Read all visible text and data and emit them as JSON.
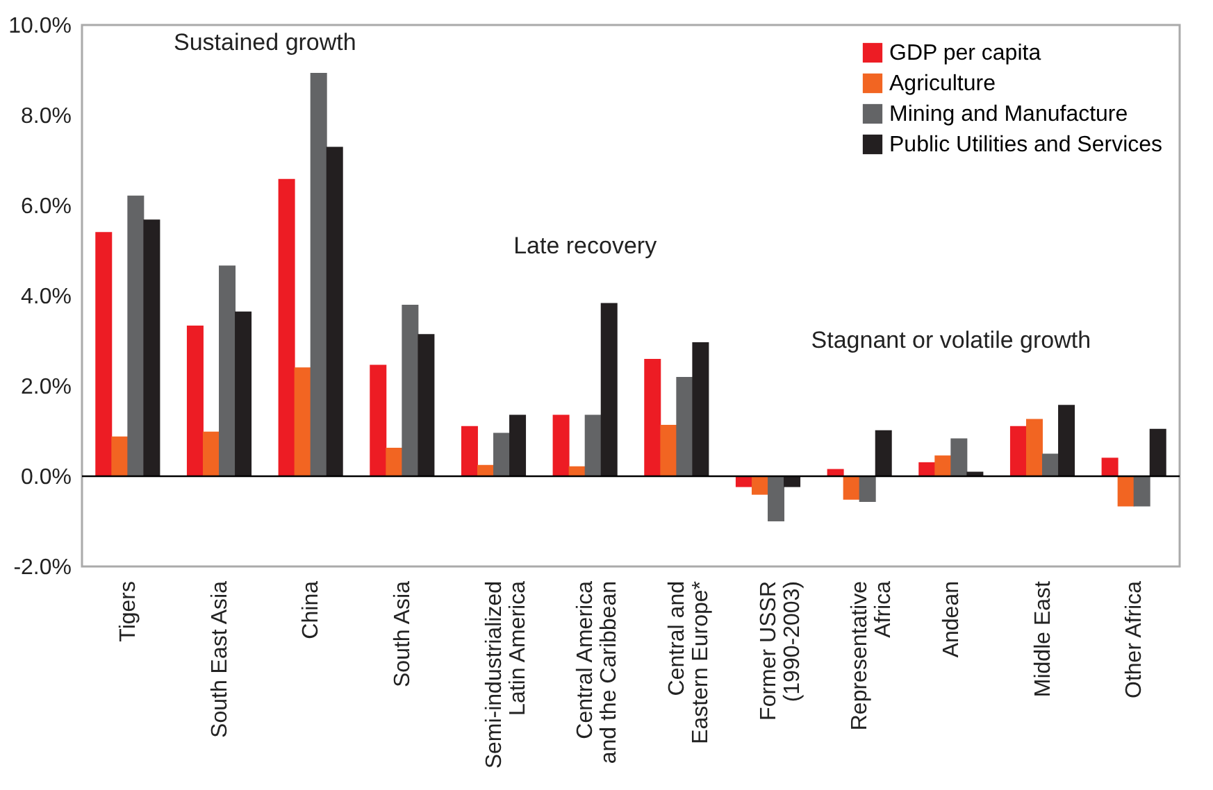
{
  "chart_data": {
    "type": "bar",
    "categories": [
      "Tigers",
      "South East Asia",
      "China",
      "South Asia",
      "Semi-industrialized\nLatin America",
      "Central America\nand the Caribbean",
      "Central and\nEastern Europe*",
      "Former USSR\n(1990-2003)",
      "Representative\nAfrica",
      "Andean",
      "Middle East",
      "Other Africa"
    ],
    "series": [
      {
        "name": "GDP per capita",
        "color": "#ed1c24",
        "values": [
          5.41,
          3.34,
          6.59,
          2.47,
          1.11,
          1.36,
          2.6,
          -0.24,
          0.16,
          0.31,
          1.11,
          0.41
        ]
      },
      {
        "name": "Agriculture",
        "color": "#f26522",
        "values": [
          0.88,
          0.99,
          2.41,
          0.63,
          0.25,
          0.22,
          1.14,
          -0.41,
          -0.52,
          0.46,
          1.27,
          -0.67
        ]
      },
      {
        "name": "Mining and Manufacture",
        "color": "#636466",
        "values": [
          6.22,
          4.67,
          8.94,
          3.8,
          0.96,
          1.36,
          2.2,
          -1.0,
          -0.57,
          0.84,
          0.5,
          -0.67
        ]
      },
      {
        "name": "Public Utilities and Services",
        "color": "#231f20",
        "values": [
          5.69,
          3.65,
          7.3,
          3.15,
          1.36,
          3.84,
          2.97,
          -0.24,
          1.02,
          0.1,
          1.58,
          1.05
        ]
      }
    ],
    "ylim": [
      -2,
      10
    ],
    "yticks": [
      {
        "value": -2,
        "label": "-2.0%"
      },
      {
        "value": 0,
        "label": "0.0%"
      },
      {
        "value": 2,
        "label": "2.0%"
      },
      {
        "value": 4,
        "label": "4.0%"
      },
      {
        "value": 6,
        "label": "6.0%"
      },
      {
        "value": 8,
        "label": "8.0%"
      },
      {
        "value": 10,
        "label": "10.0%"
      }
    ],
    "annotations": [
      "Sustained growth",
      "Late recovery",
      "Stagnant or volatile growth"
    ],
    "ref_lines": [
      {
        "axis": "y",
        "value": 0,
        "color": "#000000"
      }
    ],
    "grid": false,
    "legend": "top right"
  }
}
